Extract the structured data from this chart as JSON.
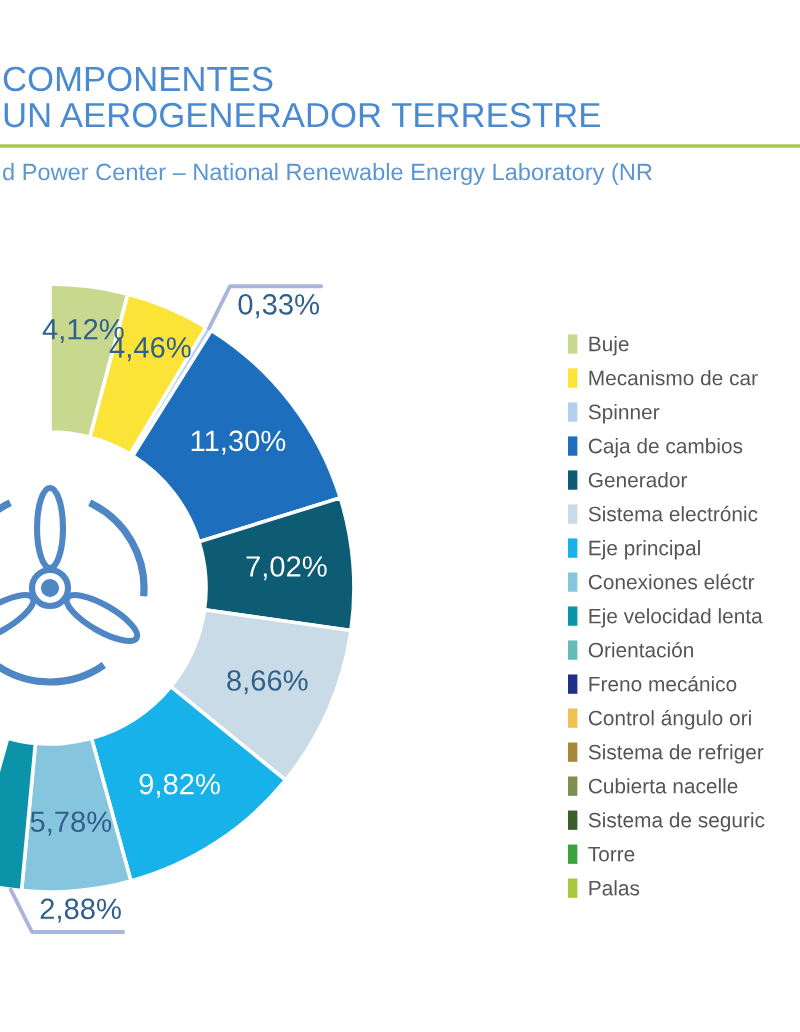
{
  "chart_data": {
    "type": "donut",
    "title": "COMPONENTES\nUN AEROGENERADOR TERRESTRE",
    "subtitle": "d Power Center – National Renewable Energy Laboratory (NR",
    "categories": [
      "Buje",
      "Mecanismo de car",
      "Spinner",
      "Caja de cambios",
      "Generador",
      "Sistema electrónic",
      "Eje principal",
      "Conexiones eléctr",
      "Eje velocidad lenta",
      "Orientación",
      "Freno mecánico",
      "Control ángulo ori",
      "Sistema de refriger",
      "Cubierta nacelle",
      "Sistema de seguric",
      "Torre",
      "Palas"
    ],
    "values": [
      4.12,
      4.46,
      0.33,
      11.3,
      7.02,
      8.66,
      9.82,
      5.78,
      2.88,
      null,
      null,
      null,
      null,
      null,
      null,
      null,
      null
    ],
    "value_labels": [
      "4,12%",
      "4,46%",
      "0,33%",
      "11,30%",
      "7,02%",
      "8,66%",
      "9,82%",
      "5,78%",
      "2,88%",
      null,
      null,
      null,
      null,
      null,
      null,
      null,
      null
    ],
    "colors": [
      "#c8d98f",
      "#fbe437",
      "#b3d0ee",
      "#1d6fbd",
      "#0d5c74",
      "#c9dbe6",
      "#16b2e9",
      "#85c5de",
      "#0b93a9",
      "#63bcb8",
      "#1f2f8c",
      "#f0c24f",
      "#a8873a",
      "#7f8f4e",
      "#3b5f2b",
      "#3aa33b",
      "#a7c93d"
    ],
    "legend": "right"
  }
}
